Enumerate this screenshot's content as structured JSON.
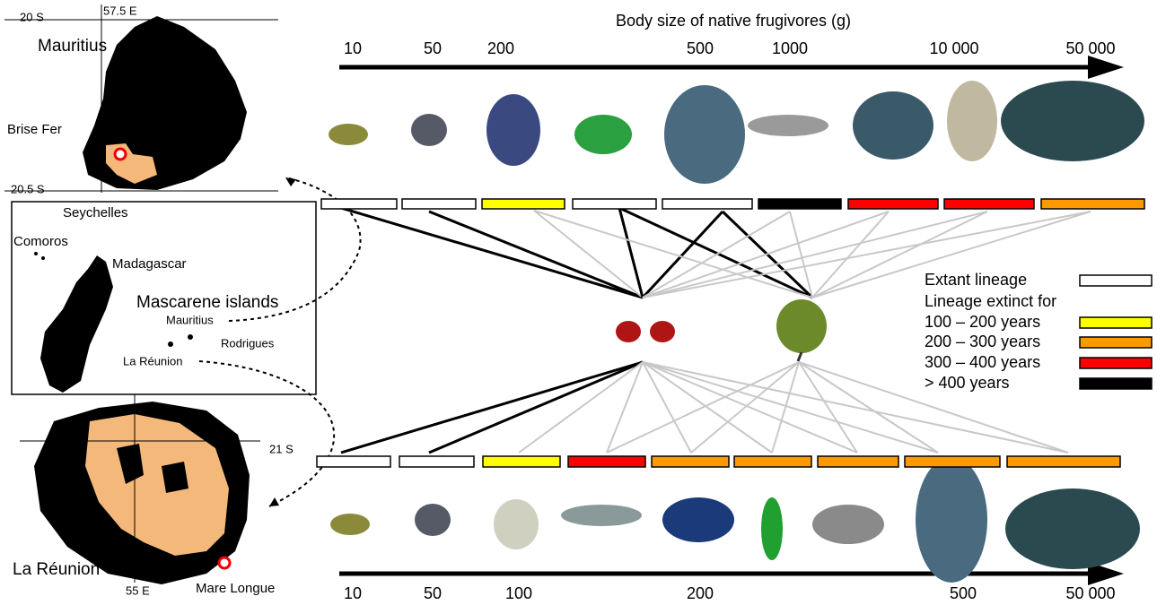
{
  "title": "Body size of native frugivores (g)",
  "top_axis": {
    "labels": [
      "10",
      "50",
      "200",
      "500",
      "1000",
      "10 000",
      "50 000"
    ]
  },
  "top_bars": [
    "#ffffff",
    "#ffffff",
    "#ffff00",
    "#ffffff",
    "#ffffff",
    "#000000",
    "#ff0000",
    "#ff0000",
    "#ff9900"
  ],
  "bottom_bars": [
    "#ffffff",
    "#ffffff",
    "#ffff00",
    "#ff0000",
    "#ff9900",
    "#ff9900",
    "#ff9900",
    "#ff9900",
    "#ff9900"
  ],
  "bottom_axis": {
    "labels": [
      "10",
      "50",
      "100",
      "200",
      "500",
      "50 000"
    ]
  },
  "maps": {
    "mauritius": {
      "lat_top": "20 S",
      "lon": "57.5 E",
      "name": "Mauritius",
      "site": "Brise Fer",
      "lat_bottom": "20.5 S"
    },
    "region": {
      "seychelles": "Seychelles",
      "comoros": "Comoros",
      "madagascar": "Madagascar",
      "group": "Mascarene islands",
      "mauritius": "Mauritius",
      "rodrigues": "Rodrigues",
      "reunion": "La Réunion"
    },
    "reunion": {
      "lat": "21 S",
      "name": "La Réunion",
      "lon": "55 E",
      "site": "Mare Longue"
    }
  },
  "legend": {
    "items": [
      {
        "label": "Extant lineage",
        "color": "#ffffff"
      },
      {
        "label": "Lineage extinct for"
      },
      {
        "label": "100 – 200 years",
        "color": "#ffff00"
      },
      {
        "label": "200 – 300 years",
        "color": "#ff9900"
      },
      {
        "label": "300 – 400 years",
        "color": "#ff0000"
      },
      {
        "label": "> 400 years",
        "color": "#000000"
      }
    ]
  }
}
